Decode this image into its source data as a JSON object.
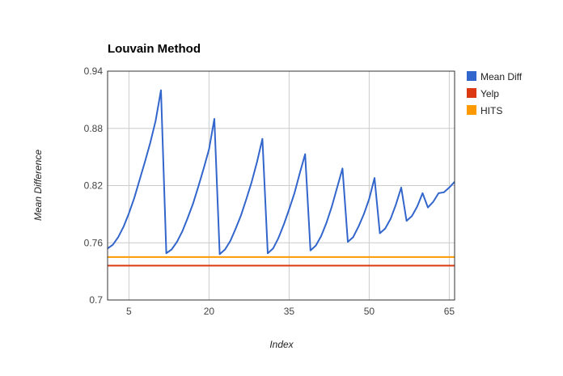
{
  "chart_data": {
    "type": "line",
    "title": "Louvain Method",
    "xlabel": "Index",
    "ylabel": "Mean Difference",
    "xlim": [
      1,
      66
    ],
    "ylim": [
      0.7,
      0.94
    ],
    "x_ticks": [
      5,
      20,
      35,
      50,
      65
    ],
    "y_ticks": [
      0.7,
      0.76,
      0.82,
      0.88,
      0.94
    ],
    "grid": true,
    "legend_position": "right",
    "series": [
      {
        "name": "Mean Diff",
        "color": "#3366cc",
        "x": [
          1,
          2,
          3,
          4,
          5,
          6,
          7,
          8,
          9,
          10,
          11,
          12,
          13,
          14,
          15,
          16,
          17,
          18,
          19,
          20,
          21,
          22,
          23,
          24,
          25,
          26,
          27,
          28,
          29,
          30,
          31,
          32,
          33,
          34,
          35,
          36,
          37,
          38,
          39,
          40,
          41,
          42,
          43,
          44,
          45,
          46,
          47,
          48,
          49,
          50,
          51,
          52,
          53,
          54,
          55,
          56,
          57,
          58,
          59,
          60,
          61,
          62,
          63,
          64,
          65,
          66
        ],
        "values": [
          0.754,
          0.758,
          0.766,
          0.777,
          0.791,
          0.807,
          0.826,
          0.845,
          0.865,
          0.888,
          0.92,
          0.749,
          0.753,
          0.761,
          0.772,
          0.786,
          0.801,
          0.819,
          0.838,
          0.858,
          0.89,
          0.748,
          0.753,
          0.762,
          0.775,
          0.789,
          0.806,
          0.824,
          0.845,
          0.869,
          0.749,
          0.754,
          0.765,
          0.779,
          0.795,
          0.812,
          0.833,
          0.853,
          0.752,
          0.757,
          0.767,
          0.781,
          0.798,
          0.818,
          0.838,
          0.761,
          0.766,
          0.777,
          0.79,
          0.806,
          0.828,
          0.77,
          0.775,
          0.785,
          0.8,
          0.818,
          0.783,
          0.788,
          0.798,
          0.812,
          0.797,
          0.803,
          0.812,
          0.813,
          0.818,
          0.824
        ]
      },
      {
        "name": "Yelp",
        "color": "#dc3912",
        "x": [
          1,
          66
        ],
        "values": [
          0.736,
          0.736
        ]
      },
      {
        "name": "HITS",
        "color": "#ff9900",
        "x": [
          1,
          66
        ],
        "values": [
          0.745,
          0.745
        ]
      }
    ]
  }
}
